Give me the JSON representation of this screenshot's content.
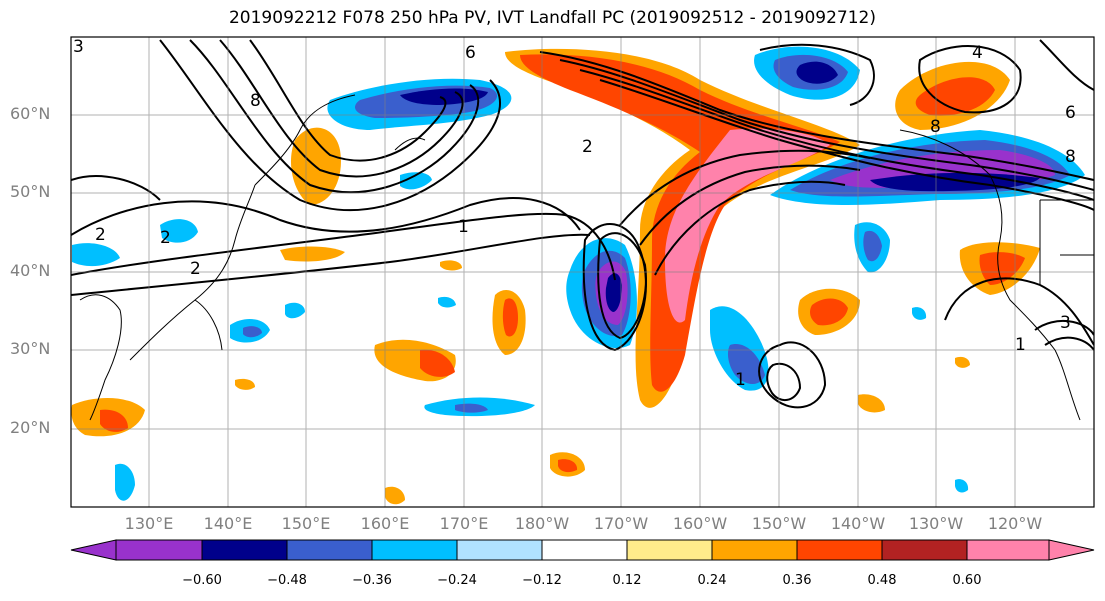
{
  "title": "2019092212 F078 250 hPa PV, IVT Landfall PC (2019092512 - 2019092712)",
  "lat_labels": [
    "60°N",
    "50°N",
    "40°N",
    "30°N",
    "20°N"
  ],
  "lon_labels": [
    "130°E",
    "140°E",
    "150°E",
    "160°E",
    "170°E",
    "180°W",
    "170°W",
    "160°W",
    "150°W",
    "140°W",
    "130°W",
    "120°W"
  ],
  "contour_labels": [
    "6",
    "8",
    "2",
    "2",
    "1",
    "2",
    "1",
    "8",
    "3",
    "8",
    "4",
    "1",
    "3",
    "2",
    "6"
  ],
  "colorbar": {
    "ticks": [
      "−0.60",
      "−0.48",
      "−0.36",
      "−0.24",
      "−0.12",
      "0.12",
      "0.24",
      "0.36",
      "0.48",
      "0.60"
    ],
    "colors": [
      "#9932cc",
      "#00008b",
      "#3a5fcd",
      "#00bfff",
      "#b0e2ff",
      "#ffffff",
      "#ffec8b",
      "#ffa500",
      "#ff4500",
      "#b22222",
      "#ff82ab"
    ]
  },
  "colors": {
    "gridline": "#808080",
    "contour": "#000000",
    "label": "#808080"
  }
}
